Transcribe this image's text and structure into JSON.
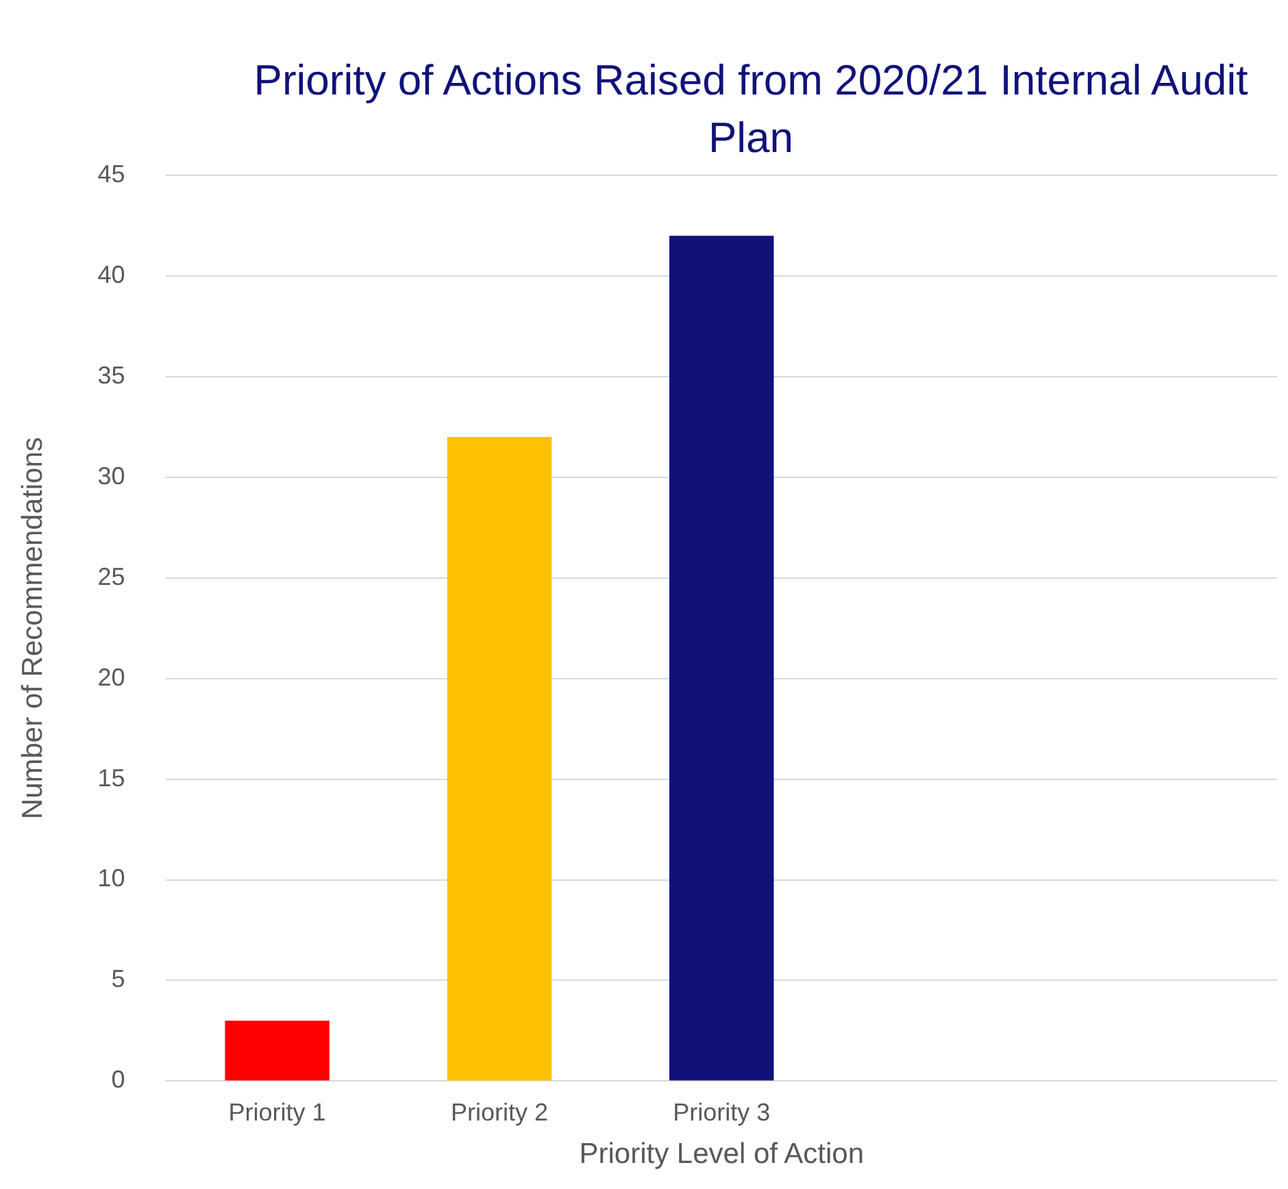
{
  "chart_data": {
    "type": "bar",
    "title": "Priority of Actions Raised from 2020/21 Internal Audit Plan",
    "xlabel": "Priority Level of Action",
    "ylabel": "Number of Recommendations",
    "categories": [
      "Priority 1",
      "Priority 2",
      "Priority 3",
      null,
      null
    ],
    "values": [
      3,
      32,
      42,
      null,
      null
    ],
    "colors": [
      "#ff0000",
      "#ffc000",
      "#10127a",
      null,
      null
    ],
    "ylim": [
      0,
      45
    ],
    "yticks": [
      0,
      5,
      10,
      15,
      20,
      25,
      30,
      35,
      40,
      45
    ],
    "grid": "y",
    "legend": false
  }
}
